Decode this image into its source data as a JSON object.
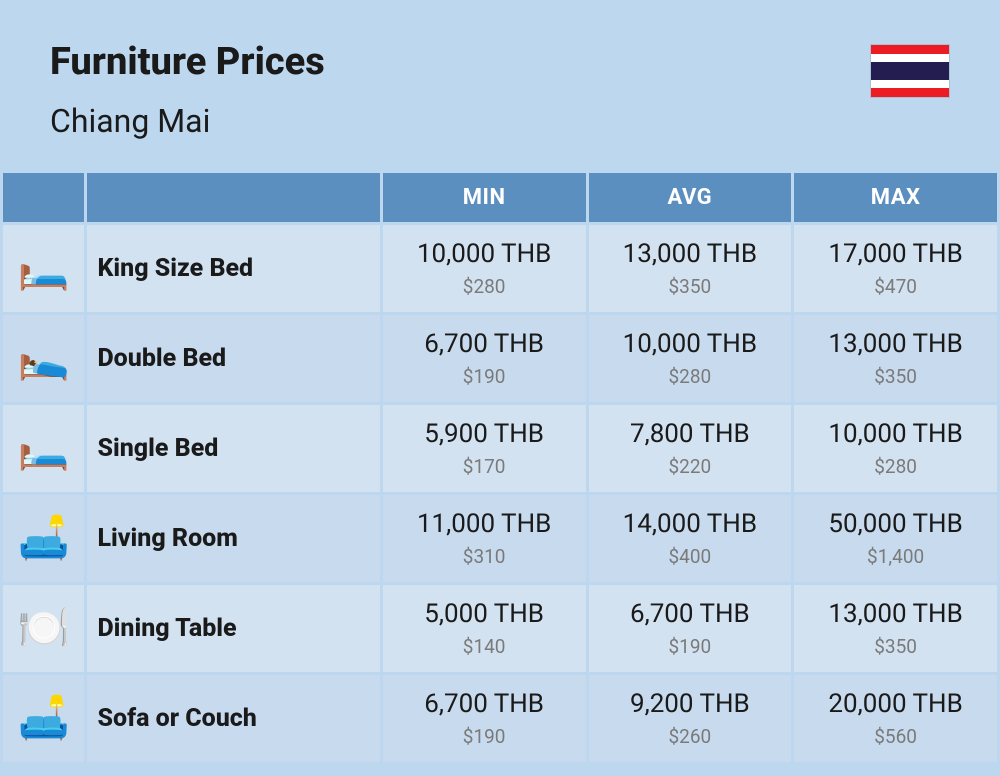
{
  "header": {
    "title": "Furniture Prices",
    "subtitle": "Chiang Mai"
  },
  "flag": {
    "stripes": [
      "#ed1c24",
      "#ffffff",
      "#241d4f",
      "#241d4f",
      "#ffffff",
      "#ed1c24"
    ]
  },
  "columns": [
    "MIN",
    "AVG",
    "MAX"
  ],
  "rows": [
    {
      "icon": "🛏️",
      "name": "King Size Bed",
      "min_thb": "10,000 THB",
      "min_usd": "$280",
      "avg_thb": "13,000 THB",
      "avg_usd": "$350",
      "max_thb": "17,000 THB",
      "max_usd": "$470"
    },
    {
      "icon": "🛌",
      "name": "Double Bed",
      "min_thb": "6,700 THB",
      "min_usd": "$190",
      "avg_thb": "10,000 THB",
      "avg_usd": "$280",
      "max_thb": "13,000 THB",
      "max_usd": "$350"
    },
    {
      "icon": "🛏️",
      "name": "Single Bed",
      "min_thb": "5,900 THB",
      "min_usd": "$170",
      "avg_thb": "7,800 THB",
      "avg_usd": "$220",
      "max_thb": "10,000 THB",
      "max_usd": "$280"
    },
    {
      "icon": "🛋️",
      "name": "Living Room",
      "min_thb": "11,000 THB",
      "min_usd": "$310",
      "avg_thb": "14,000 THB",
      "avg_usd": "$400",
      "max_thb": "50,000 THB",
      "max_usd": "$1,400"
    },
    {
      "icon": "🍽️",
      "name": "Dining Table",
      "min_thb": "5,000 THB",
      "min_usd": "$140",
      "avg_thb": "6,700 THB",
      "avg_usd": "$190",
      "max_thb": "13,000 THB",
      "max_usd": "$350"
    },
    {
      "icon": "🛋️",
      "name": "Sofa or Couch",
      "min_thb": "6,700 THB",
      "min_usd": "$190",
      "avg_thb": "9,200 THB",
      "avg_usd": "$260",
      "max_thb": "20,000 THB",
      "max_usd": "$560"
    }
  ],
  "styles": {
    "page_bg": "#bdd7ee",
    "header_bg": "#5a8fc0",
    "header_text": "#ffffff",
    "row_odd_bg": "#d3e2f1",
    "row_even_bg": "#c8daed",
    "text_primary": "#1a1a1a",
    "text_secondary": "#7a7a7a",
    "title_fontsize": 38,
    "subtitle_fontsize": 32,
    "column_header_fontsize": 22,
    "name_fontsize": 25,
    "thb_fontsize": 26,
    "usd_fontsize": 19
  }
}
